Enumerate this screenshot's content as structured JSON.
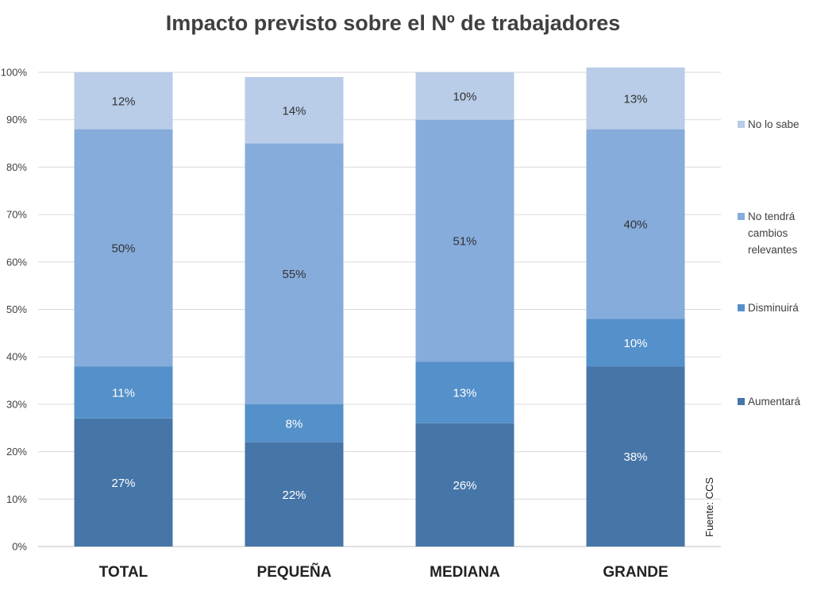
{
  "chart_data": {
    "type": "bar",
    "stacked": true,
    "title": "Impacto previsto sobre el Nº de trabajadores",
    "categories": [
      "TOTAL",
      "PEQUEÑA",
      "MEDIANA",
      "GRANDE"
    ],
    "ylim": [
      0,
      100
    ],
    "yticks": [
      "0%",
      "10%",
      "20%",
      "30%",
      "40%",
      "50%",
      "60%",
      "70%",
      "80%",
      "90%",
      "100%"
    ],
    "grid": true,
    "legend_position": "right",
    "series": [
      {
        "name": "Aumentará",
        "values": [
          27,
          22,
          26,
          38
        ],
        "labels": [
          "27%",
          "22%",
          "26%",
          "38%"
        ],
        "color": "#4675a8",
        "label_color": "#ffffff"
      },
      {
        "name": "Disminuirá",
        "values": [
          11,
          8,
          13,
          10
        ],
        "labels": [
          "11%",
          "8%",
          "13%",
          "10%"
        ],
        "color": "#5490c9",
        "label_color": "#ffffff"
      },
      {
        "name": "No tendrá cambios relevantes",
        "legend_lines": [
          "No tendrá",
          "cambios",
          "relevantes"
        ],
        "values": [
          50,
          55,
          51,
          40
        ],
        "labels": [
          "50%",
          "55%",
          "51%",
          "40%"
        ],
        "color": "#85acdb",
        "label_color": "#333333"
      },
      {
        "name": "No lo sabe",
        "values": [
          12,
          14,
          10,
          13
        ],
        "labels": [
          "12%",
          "14%",
          "10%",
          "13%"
        ],
        "color": "#b9cce8",
        "label_color": "#333333"
      }
    ],
    "source": "Fuente: CCS"
  }
}
